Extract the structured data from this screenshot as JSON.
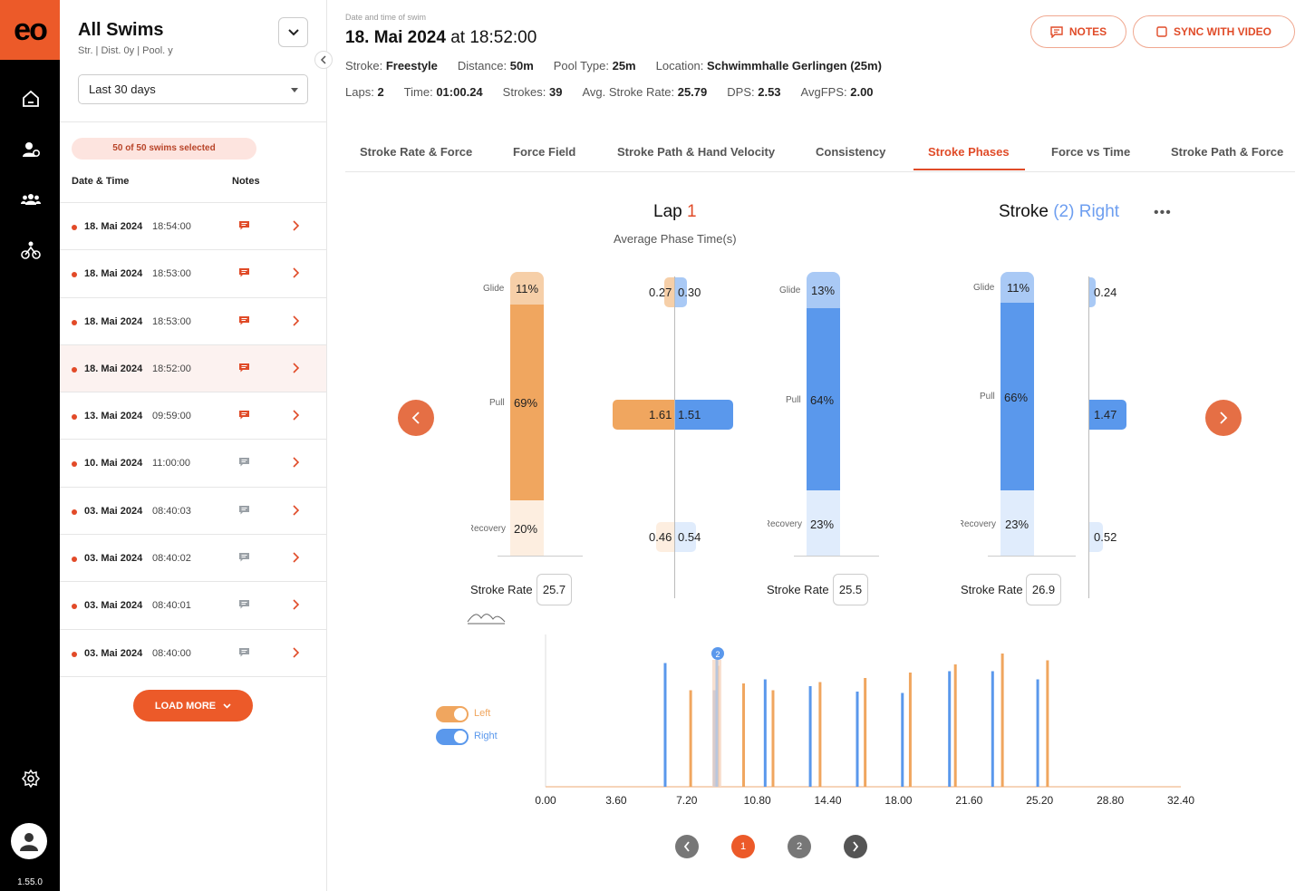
{
  "brand": {
    "logo": "eo",
    "accent": "#ec5a29",
    "left_color": "#f0a65f",
    "right_color": "#5a98ec"
  },
  "rail": {
    "icons": [
      "home-icon",
      "athlete-settings-icon",
      "team-icon",
      "triathlon-icon",
      "settings-icon"
    ],
    "version": "1.55.0"
  },
  "panel": {
    "title": "All Swims",
    "subtitle": "Str. | Dist. 0y | Pool. y",
    "period": "Last 30 days",
    "selected_badge": "50 of 50 swims selected",
    "col_date": "Date & Time",
    "col_notes": "Notes",
    "load_more": "LOAD MORE",
    "swims": [
      {
        "date": "18. Mai 2024",
        "time": "18:54:00",
        "has_note": true,
        "active": false
      },
      {
        "date": "18. Mai 2024",
        "time": "18:53:00",
        "has_note": true,
        "active": false
      },
      {
        "date": "18. Mai 2024",
        "time": "18:53:00",
        "has_note": true,
        "active": false
      },
      {
        "date": "18. Mai 2024",
        "time": "18:52:00",
        "has_note": true,
        "active": true
      },
      {
        "date": "13. Mai 2024",
        "time": "09:59:00",
        "has_note": true,
        "active": false
      },
      {
        "date": "10. Mai 2024",
        "time": "11:00:00",
        "has_note": false,
        "active": false
      },
      {
        "date": "03. Mai 2024",
        "time": "08:40:03",
        "has_note": false,
        "active": false
      },
      {
        "date": "03. Mai 2024",
        "time": "08:40:02",
        "has_note": false,
        "active": false
      },
      {
        "date": "03. Mai 2024",
        "time": "08:40:01",
        "has_note": false,
        "active": false
      },
      {
        "date": "03. Mai 2024",
        "time": "08:40:00",
        "has_note": false,
        "active": false
      }
    ]
  },
  "header": {
    "meta": "Date and time of swim",
    "date": "18. Mai 2024",
    "at": "at",
    "time": "18:52:00",
    "notes_btn": "NOTES",
    "sync_btn": "SYNC WITH VIDEO",
    "row1": [
      {
        "label": "Stroke:",
        "value": "Freestyle"
      },
      {
        "label": "Distance:",
        "value": "50m"
      },
      {
        "label": "Pool Type:",
        "value": "25m"
      },
      {
        "label": "Location:",
        "value": "Schwimmhalle Gerlingen (25m)"
      }
    ],
    "row2": [
      {
        "label": "Laps:",
        "value": "2"
      },
      {
        "label": "Time:",
        "value": "01:00.24"
      },
      {
        "label": "Strokes:",
        "value": "39"
      },
      {
        "label": "Avg. Stroke Rate:",
        "value": "25.79"
      },
      {
        "label": "DPS:",
        "value": "2.53"
      },
      {
        "label": "AvgFPS:",
        "value": "2.00"
      }
    ]
  },
  "tabs": [
    "Stroke Rate & Force",
    "Force Field",
    "Stroke Path & Hand Velocity",
    "Consistency",
    "Stroke Phases",
    "Force vs Time",
    "Stroke Path & Force"
  ],
  "active_tab": "Stroke Phases",
  "phases": {
    "lap_label": "Lap",
    "lap_num": "1",
    "avg_caption": "Average Phase Time(s)",
    "stroke_label": "Stroke",
    "stroke_num": "(2)",
    "stroke_side": "Right",
    "phase_labels": {
      "glide": "Glide",
      "pull": "Pull",
      "recovery": "Recovery"
    },
    "stroke_rate_label": "Stroke Rate",
    "lap_bar": {
      "glide": "11%",
      "pull": "69%",
      "recovery": "20%",
      "stroke_rate": "25.7"
    },
    "lap_times": {
      "glide_left": "0.27",
      "glide_right": "0.30",
      "pull_left": "1.61",
      "pull_right": "1.51",
      "rec_left": "0.46",
      "rec_right": "0.54"
    },
    "stroke_bar": {
      "glide": "13%",
      "pull": "64%",
      "recovery": "23%",
      "stroke_rate": "25.5"
    },
    "stroke2_bar": {
      "glide": "11%",
      "pull": "66%",
      "recovery": "23%",
      "stroke_rate": "26.9"
    },
    "stroke2_times": {
      "glide": "0.24",
      "pull": "1.47",
      "recovery": "0.52"
    }
  },
  "timeline": {
    "toggle_left": "Left",
    "toggle_right": "Right",
    "marker": "2",
    "pages": [
      "1",
      "2"
    ]
  },
  "chart_data": {
    "type": "bar",
    "x_ticks": [
      "0.00",
      "3.60",
      "7.20",
      "10.80",
      "14.40",
      "18.00",
      "21.60",
      "25.20",
      "28.80",
      "32.40"
    ],
    "xlim": [
      0,
      32.4
    ],
    "series": [
      {
        "name": "Left",
        "x": [
          7.4,
          8.8,
          10.1,
          11.6,
          14.0,
          16.3,
          18.6,
          20.9,
          23.3,
          25.6
        ],
        "values": [
          0.71,
          0.89,
          0.76,
          0.71,
          0.77,
          0.8,
          0.84,
          0.9,
          0.98,
          0.93
        ]
      },
      {
        "name": "Right",
        "x": [
          6.1,
          8.6,
          11.2,
          13.5,
          15.9,
          18.2,
          20.6,
          22.8,
          25.1
        ],
        "values": [
          0.91,
          0.71,
          0.79,
          0.74,
          0.7,
          0.69,
          0.85,
          0.85,
          0.79
        ]
      }
    ]
  }
}
